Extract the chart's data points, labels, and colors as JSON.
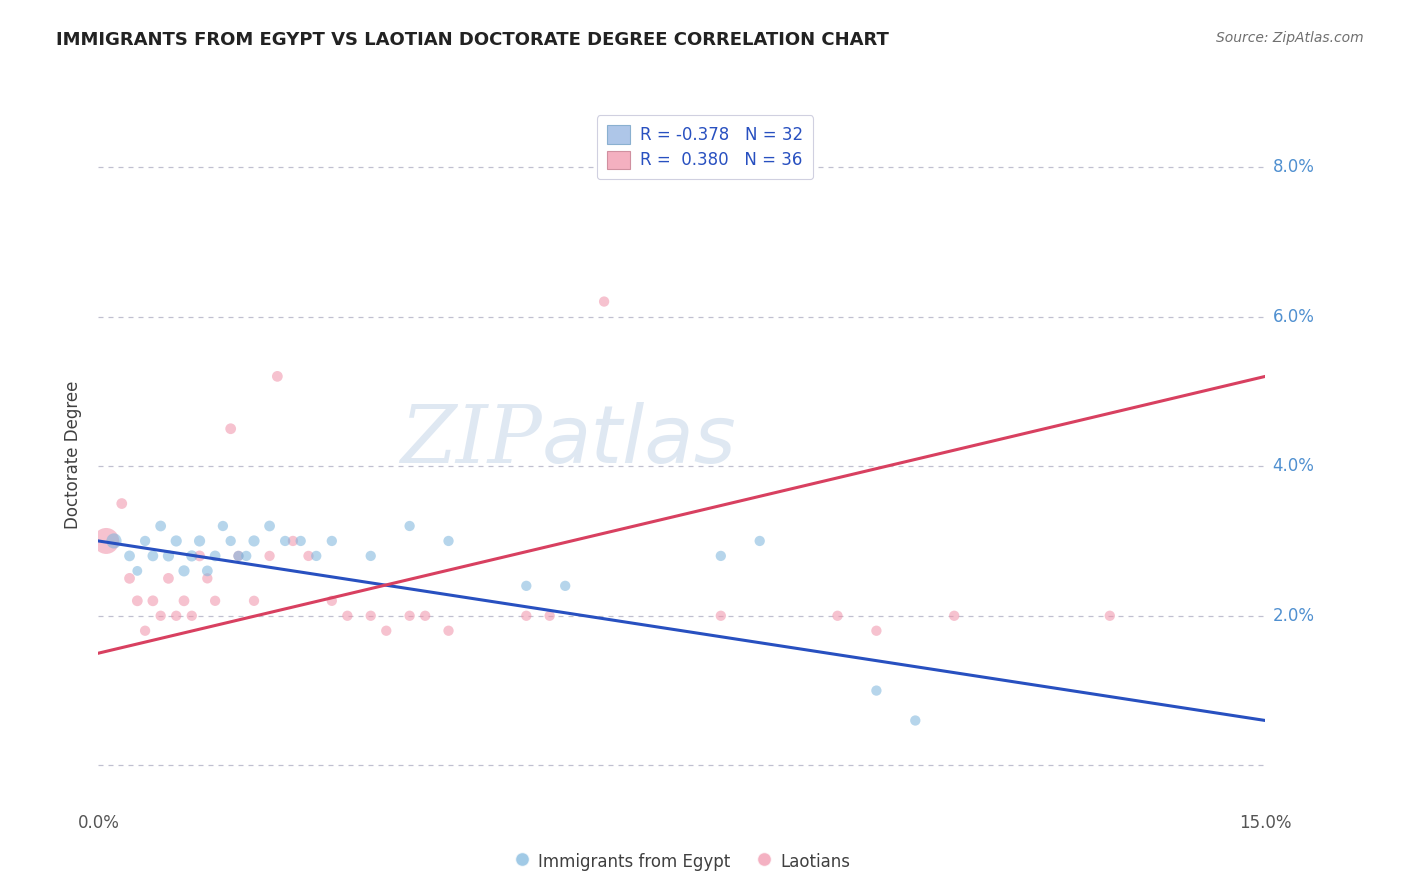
{
  "title": "IMMIGRANTS FROM EGYPT VS LAOTIAN DOCTORATE DEGREE CORRELATION CHART",
  "source": "Source: ZipAtlas.com",
  "ylabel": "Doctorate Degree",
  "y_ticks": [
    0.0,
    0.02,
    0.04,
    0.06,
    0.08
  ],
  "y_tick_labels": [
    "",
    "2.0%",
    "4.0%",
    "6.0%",
    "8.0%"
  ],
  "xlim": [
    0.0,
    0.15
  ],
  "ylim": [
    -0.005,
    0.088
  ],
  "blue_scatter": [
    [
      0.002,
      0.03
    ],
    [
      0.004,
      0.028
    ],
    [
      0.005,
      0.026
    ],
    [
      0.006,
      0.03
    ],
    [
      0.007,
      0.028
    ],
    [
      0.008,
      0.032
    ],
    [
      0.009,
      0.028
    ],
    [
      0.01,
      0.03
    ],
    [
      0.011,
      0.026
    ],
    [
      0.012,
      0.028
    ],
    [
      0.013,
      0.03
    ],
    [
      0.014,
      0.026
    ],
    [
      0.015,
      0.028
    ],
    [
      0.016,
      0.032
    ],
    [
      0.017,
      0.03
    ],
    [
      0.018,
      0.028
    ],
    [
      0.019,
      0.028
    ],
    [
      0.02,
      0.03
    ],
    [
      0.022,
      0.032
    ],
    [
      0.024,
      0.03
    ],
    [
      0.026,
      0.03
    ],
    [
      0.028,
      0.028
    ],
    [
      0.03,
      0.03
    ],
    [
      0.035,
      0.028
    ],
    [
      0.04,
      0.032
    ],
    [
      0.045,
      0.03
    ],
    [
      0.055,
      0.024
    ],
    [
      0.06,
      0.024
    ],
    [
      0.08,
      0.028
    ],
    [
      0.085,
      0.03
    ],
    [
      0.1,
      0.01
    ],
    [
      0.105,
      0.006
    ]
  ],
  "blue_sizes": [
    120,
    60,
    50,
    55,
    60,
    60,
    65,
    65,
    65,
    65,
    65,
    60,
    60,
    55,
    55,
    55,
    55,
    65,
    60,
    55,
    55,
    55,
    55,
    55,
    55,
    55,
    55,
    55,
    55,
    55,
    55,
    55
  ],
  "pink_scatter": [
    [
      0.001,
      0.03
    ],
    [
      0.003,
      0.035
    ],
    [
      0.004,
      0.025
    ],
    [
      0.005,
      0.022
    ],
    [
      0.006,
      0.018
    ],
    [
      0.007,
      0.022
    ],
    [
      0.008,
      0.02
    ],
    [
      0.009,
      0.025
    ],
    [
      0.01,
      0.02
    ],
    [
      0.011,
      0.022
    ],
    [
      0.012,
      0.02
    ],
    [
      0.013,
      0.028
    ],
    [
      0.014,
      0.025
    ],
    [
      0.015,
      0.022
    ],
    [
      0.017,
      0.045
    ],
    [
      0.018,
      0.028
    ],
    [
      0.02,
      0.022
    ],
    [
      0.022,
      0.028
    ],
    [
      0.023,
      0.052
    ],
    [
      0.025,
      0.03
    ],
    [
      0.027,
      0.028
    ],
    [
      0.03,
      0.022
    ],
    [
      0.032,
      0.02
    ],
    [
      0.035,
      0.02
    ],
    [
      0.037,
      0.018
    ],
    [
      0.04,
      0.02
    ],
    [
      0.042,
      0.02
    ],
    [
      0.045,
      0.018
    ],
    [
      0.055,
      0.02
    ],
    [
      0.058,
      0.02
    ],
    [
      0.065,
      0.062
    ],
    [
      0.08,
      0.02
    ],
    [
      0.095,
      0.02
    ],
    [
      0.1,
      0.018
    ],
    [
      0.11,
      0.02
    ],
    [
      0.13,
      0.02
    ]
  ],
  "pink_sizes": [
    350,
    60,
    60,
    60,
    55,
    60,
    55,
    60,
    55,
    60,
    55,
    60,
    55,
    55,
    60,
    55,
    55,
    55,
    60,
    55,
    55,
    55,
    55,
    55,
    55,
    55,
    55,
    55,
    55,
    55,
    55,
    55,
    55,
    55,
    55,
    55
  ],
  "blue_line_x": [
    0.0,
    0.15
  ],
  "blue_line_y": [
    0.03,
    0.006
  ],
  "pink_line_x": [
    0.0,
    0.15
  ],
  "pink_line_y": [
    0.015,
    0.052
  ],
  "blue_color": "#7ab4dc",
  "pink_color": "#f090a8",
  "blue_line_color": "#2850c0",
  "pink_line_color": "#d84060",
  "background_color": "#ffffff",
  "grid_color": "#c0c0d0",
  "title_color": "#222222",
  "source_color": "#707070",
  "legend_blue_patch": "#aec6e8",
  "legend_pink_patch": "#f4b0c0",
  "legend_text_color": "#2850c0",
  "legend_line1": "R = -0.378   N = 32",
  "legend_line2": "R =  0.380   N = 36",
  "bottom_legend_blue": "Immigrants from Egypt",
  "bottom_legend_pink": "Laotians",
  "watermark_text": "ZIPatlas"
}
